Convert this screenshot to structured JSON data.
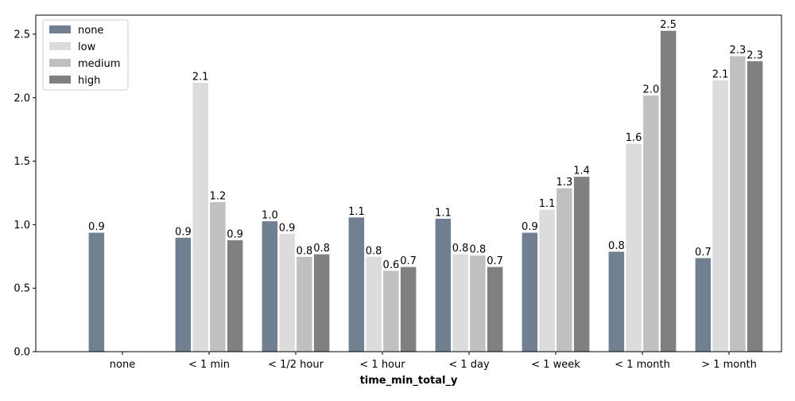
{
  "chart_data": {
    "type": "bar",
    "title": "",
    "xlabel": "time_min_total_y",
    "ylabel": "",
    "categories": [
      "none",
      "< 1 min",
      "< 1/2 hour",
      "< 1 hour",
      "< 1 day",
      "< 1 week",
      "< 1 month",
      "> 1 month"
    ],
    "ylim": [
      0,
      2.65
    ],
    "yticks": [
      0.0,
      0.5,
      1.0,
      1.5,
      2.0,
      2.5
    ],
    "ytick_labels": [
      "0.0",
      "0.5",
      "1.0",
      "1.5",
      "2.0",
      "2.5"
    ],
    "legend_position": "top-left",
    "grid": false,
    "series": [
      {
        "name": "none",
        "color": "#708090",
        "values": [
          0.94,
          0.9,
          1.03,
          1.06,
          1.05,
          0.94,
          0.79,
          0.74
        ],
        "labels": [
          "0.9",
          "0.9",
          "1.0",
          "1.1",
          "1.1",
          "0.9",
          "0.8",
          "0.7"
        ]
      },
      {
        "name": "low",
        "color": "#dcdcdc",
        "values": [
          null,
          2.12,
          0.93,
          0.75,
          0.77,
          1.12,
          1.64,
          2.14
        ],
        "labels": [
          null,
          "2.1",
          "0.9",
          "0.8",
          "0.8",
          "1.1",
          "1.6",
          "2.1"
        ]
      },
      {
        "name": "medium",
        "color": "#c0c0c0",
        "values": [
          null,
          1.18,
          0.75,
          0.64,
          0.76,
          1.29,
          2.02,
          2.33
        ],
        "labels": [
          null,
          "1.2",
          "0.8",
          "0.6",
          "0.8",
          "1.3",
          "2.0",
          "2.3"
        ]
      },
      {
        "name": "high",
        "color": "#808080",
        "values": [
          null,
          0.88,
          0.77,
          0.67,
          0.67,
          1.38,
          2.53,
          2.29
        ],
        "labels": [
          null,
          "0.9",
          "0.8",
          "0.7",
          "0.7",
          "1.4",
          "2.5",
          "2.3"
        ]
      }
    ]
  }
}
